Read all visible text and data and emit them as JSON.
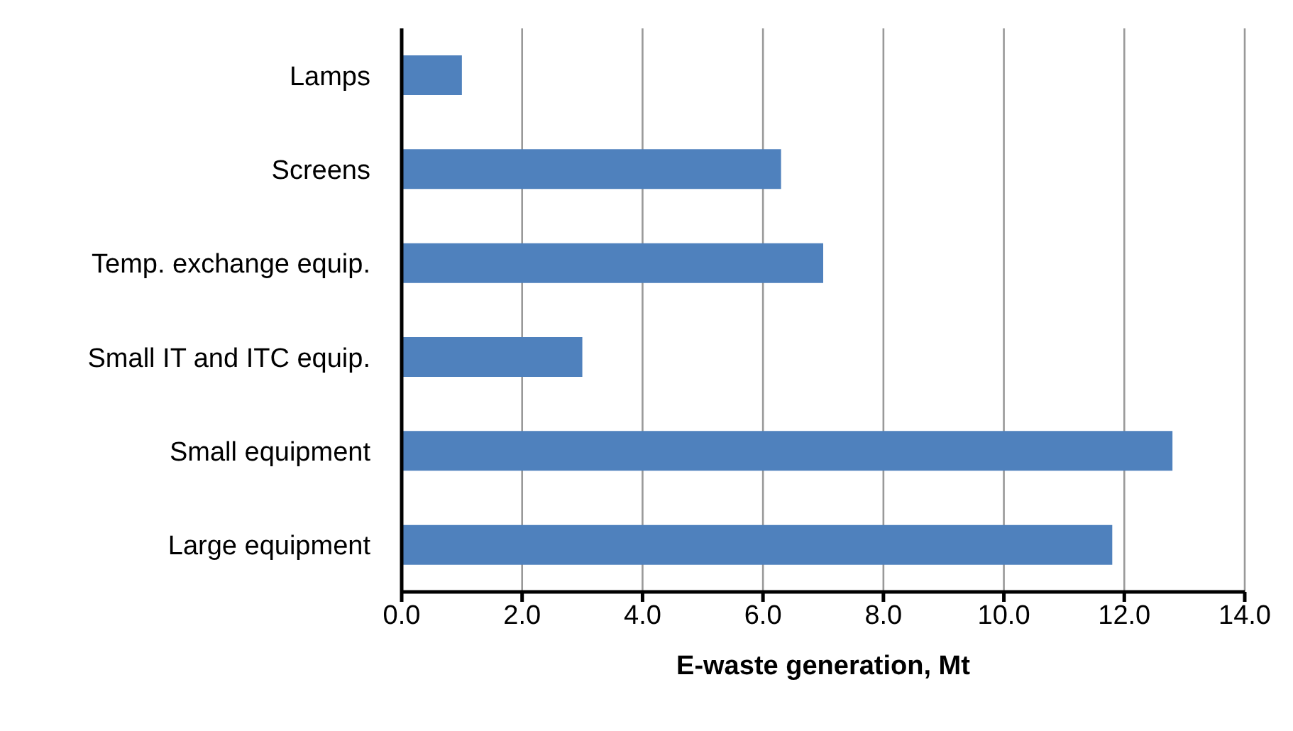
{
  "chart_data": {
    "type": "bar",
    "orientation": "horizontal",
    "categories": [
      "Lamps",
      "Screens",
      "Temp. exchange equip.",
      "Small IT and ITC equip.",
      "Small equipment",
      "Large  equipment"
    ],
    "values": [
      1.0,
      6.3,
      7.0,
      3.0,
      12.8,
      11.8
    ],
    "color": "#4f81bd",
    "xlim": [
      0,
      14
    ],
    "xticks": [
      {
        "value": 0,
        "label": "0.0"
      },
      {
        "value": 2,
        "label": "2.0"
      },
      {
        "value": 4,
        "label": "4.0"
      },
      {
        "value": 6,
        "label": "6.0"
      },
      {
        "value": 8,
        "label": "8.0"
      },
      {
        "value": 10,
        "label": "10.0"
      },
      {
        "value": 12,
        "label": "12.0"
      },
      {
        "value": 14,
        "label": "14.0"
      }
    ],
    "xlabel": "E-waste generation, Mt",
    "grid": "x",
    "legend": false
  }
}
